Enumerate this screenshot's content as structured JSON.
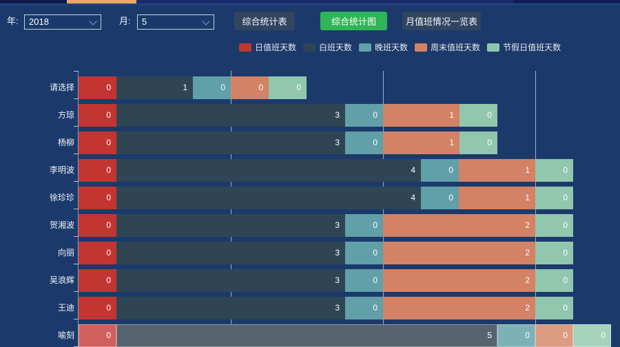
{
  "page": {
    "background_color": "#1b3a6b"
  },
  "top_strip": {
    "active_tab_color": "#efa85f"
  },
  "toolbar": {
    "year_label": "年:",
    "year_value": "2018",
    "month_label": "月:",
    "month_value": "5",
    "buttons": [
      {
        "label": "综合统计表",
        "active": false
      },
      {
        "label": "综合统计图",
        "active": true
      },
      {
        "label": "月值班情况一览表",
        "active": false
      }
    ],
    "active_button_color": "#2fb457",
    "inactive_button_color": "#31455f"
  },
  "chart_data": {
    "type": "bar",
    "orientation": "horizontal",
    "stacked": true,
    "grid": true,
    "legend_position": "top-center",
    "value_label_position": "inside-right",
    "categories": [
      "请选择",
      "方琼",
      "杨柳",
      "李明波",
      "徐珍珍",
      "贺湘波",
      "向丽",
      "吴浪辉",
      "王迪",
      "喻刻"
    ],
    "series": [
      {
        "name": "日值班天数",
        "color": "#c23531",
        "emphasis_color": "#d0605e",
        "values": [
          0,
          0,
          0,
          0,
          0,
          0,
          0,
          0,
          0,
          0
        ]
      },
      {
        "name": "白班天数",
        "color": "#2f4554",
        "emphasis_color": "#56646f",
        "values": [
          1,
          3,
          3,
          4,
          4,
          3,
          3,
          3,
          3,
          5
        ]
      },
      {
        "name": "晚班天数",
        "color": "#61a0a8",
        "emphasis_color": "#7db1b8",
        "values": [
          0,
          0,
          0,
          0,
          0,
          0,
          0,
          0,
          0,
          0
        ]
      },
      {
        "name": "周末值班天数",
        "color": "#d48265",
        "emphasis_color": "#dc9c82",
        "values": [
          0,
          1,
          1,
          1,
          1,
          2,
          2,
          2,
          2,
          0
        ]
      },
      {
        "name": "节假日值班天数",
        "color": "#91c7ae",
        "emphasis_color": "#a6d1bd",
        "values": [
          0,
          0,
          0,
          0,
          0,
          0,
          0,
          0,
          0,
          0
        ]
      }
    ],
    "highlighted_category": "喻刻",
    "x_axis": {
      "min": 0,
      "visible_max": 7,
      "gridline_values": [
        2,
        4,
        6
      ]
    }
  }
}
